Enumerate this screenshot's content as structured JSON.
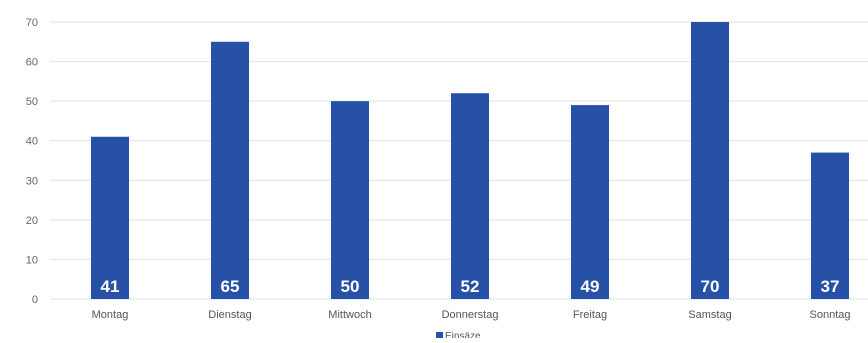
{
  "chart_data": {
    "type": "bar",
    "categories": [
      "Montag",
      "Dienstag",
      "Mittwoch",
      "Donnerstag",
      "Freitag",
      "Samstag",
      "Sonntag"
    ],
    "series": [
      {
        "name": "Einsäze",
        "values": [
          41,
          65,
          50,
          52,
          49,
          70,
          37
        ],
        "color": "#2651a6"
      }
    ],
    "title": "",
    "xlabel": "",
    "ylabel": "",
    "ylim": [
      0,
      70
    ],
    "yticks": [
      0,
      10,
      20,
      30,
      40,
      50,
      60,
      70
    ],
    "grid": true,
    "legend": "bottom",
    "data_labels": true
  }
}
